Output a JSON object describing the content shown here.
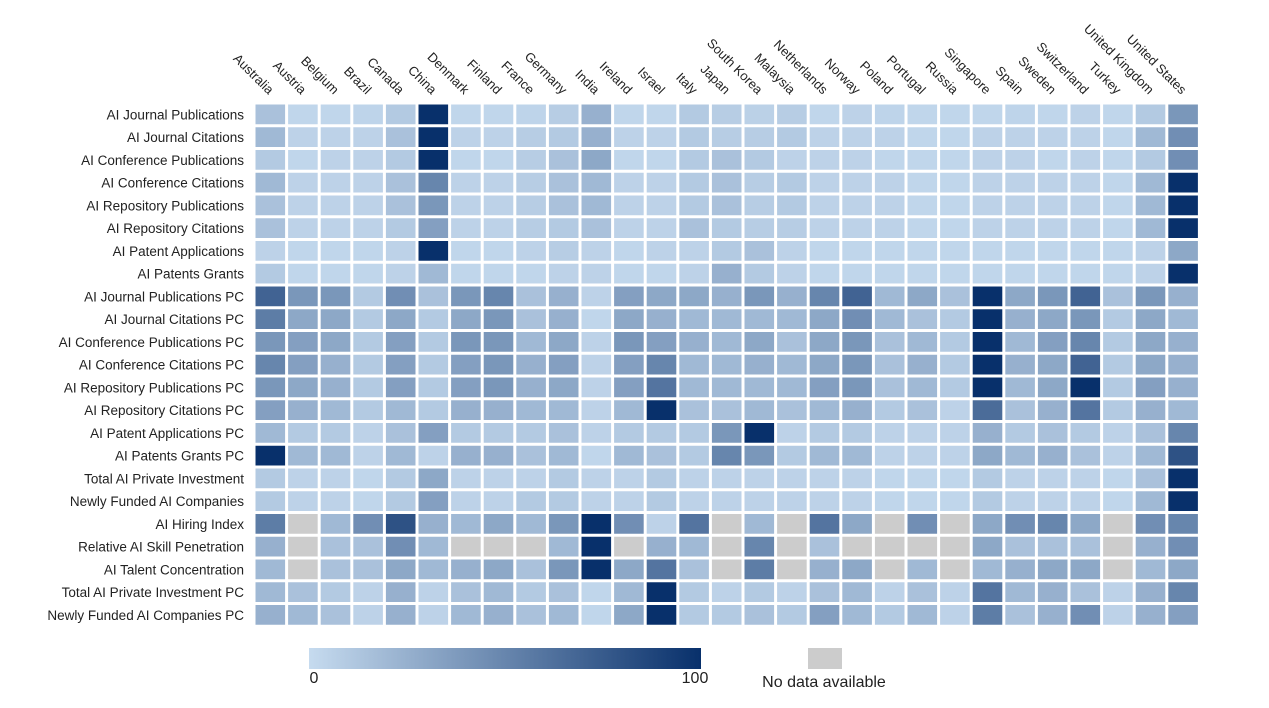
{
  "chart_data": {
    "type": "heatmap",
    "color_scale": {
      "min": 0,
      "max": 100,
      "low_color": "#c6dbef",
      "high_color": "#08306b",
      "missing_color": "#cccccc"
    },
    "legend": {
      "min_label": "0",
      "max_label": "100",
      "missing_label": "No data available"
    },
    "columns": [
      "Australia",
      "Austria",
      "Belgium",
      "Brazil",
      "Canada",
      "China",
      "Denmark",
      "Finland",
      "France",
      "Germany",
      "India",
      "Ireland",
      "Israel",
      "Italy",
      "Japan",
      "South Korea",
      "Malaysia",
      "Netherlands",
      "Norway",
      "Poland",
      "Portugal",
      "Russia",
      "Singapore",
      "Spain",
      "Sweden",
      "Switzerland",
      "Turkey",
      "United Kingdom",
      "United States"
    ],
    "rows": [
      "AI Journal Publications",
      "AI Journal Citations",
      "AI Conference Publications",
      "AI Conference Citations",
      "AI Repository Publications",
      "AI Repository Citations",
      "AI Patent Applications",
      "AI Patents Grants",
      "AI Journal Publications PC",
      "AI Journal Citations PC",
      "AI Conference Publications PC",
      "AI Conference Citations PC",
      "AI Repository Publications PC",
      "AI Repository Citations PC",
      "AI Patent Applications PC",
      "AI Patents Grants PC",
      "Total AI Private Investment",
      "Newly Funded AI Companies",
      "AI Hiring Index",
      "Relative AI Skill Penetration",
      "AI Talent Concentration",
      "Total AI Private Investment PC",
      "Newly Funded AI Companies PC"
    ],
    "values": [
      [
        15,
        3,
        3,
        4,
        10,
        100,
        3,
        3,
        4,
        8,
        25,
        3,
        3,
        10,
        8,
        6,
        8,
        3,
        5,
        4,
        3,
        3,
        3,
        4,
        3,
        5,
        3,
        10,
        40
      ],
      [
        20,
        5,
        5,
        5,
        15,
        100,
        5,
        5,
        8,
        10,
        25,
        5,
        5,
        10,
        8,
        8,
        10,
        5,
        5,
        5,
        3,
        3,
        5,
        5,
        5,
        5,
        3,
        20,
        45
      ],
      [
        10,
        3,
        5,
        5,
        10,
        100,
        3,
        3,
        8,
        15,
        30,
        3,
        3,
        10,
        15,
        10,
        5,
        5,
        5,
        3,
        3,
        3,
        5,
        5,
        3,
        5,
        3,
        10,
        45
      ],
      [
        20,
        5,
        5,
        5,
        15,
        50,
        5,
        5,
        8,
        15,
        20,
        5,
        5,
        10,
        15,
        8,
        10,
        5,
        5,
        5,
        3,
        3,
        5,
        5,
        5,
        5,
        3,
        20,
        100
      ],
      [
        15,
        5,
        5,
        5,
        15,
        40,
        5,
        5,
        8,
        15,
        20,
        5,
        5,
        10,
        15,
        8,
        10,
        5,
        5,
        5,
        3,
        3,
        5,
        5,
        5,
        5,
        3,
        20,
        100
      ],
      [
        15,
        5,
        5,
        5,
        10,
        35,
        5,
        5,
        8,
        10,
        15,
        5,
        5,
        15,
        10,
        8,
        8,
        5,
        5,
        5,
        3,
        3,
        5,
        5,
        5,
        5,
        3,
        20,
        100
      ],
      [
        5,
        3,
        3,
        3,
        5,
        100,
        3,
        3,
        5,
        8,
        5,
        3,
        5,
        5,
        10,
        15,
        5,
        3,
        3,
        3,
        3,
        3,
        3,
        3,
        3,
        3,
        3,
        5,
        30
      ],
      [
        10,
        3,
        3,
        3,
        5,
        20,
        3,
        3,
        3,
        5,
        5,
        3,
        3,
        5,
        25,
        10,
        5,
        3,
        3,
        3,
        3,
        3,
        3,
        3,
        3,
        3,
        3,
        5,
        100
      ],
      [
        70,
        40,
        40,
        10,
        45,
        15,
        40,
        50,
        15,
        25,
        5,
        35,
        30,
        30,
        25,
        40,
        25,
        50,
        70,
        20,
        30,
        15,
        100,
        30,
        40,
        70,
        15,
        40,
        25
      ],
      [
        55,
        30,
        30,
        10,
        30,
        10,
        30,
        40,
        15,
        25,
        3,
        30,
        25,
        20,
        20,
        20,
        20,
        30,
        45,
        20,
        15,
        10,
        100,
        25,
        30,
        40,
        10,
        30,
        20
      ],
      [
        40,
        35,
        30,
        10,
        35,
        10,
        40,
        40,
        20,
        30,
        5,
        40,
        35,
        25,
        20,
        30,
        15,
        30,
        40,
        15,
        20,
        10,
        100,
        20,
        35,
        50,
        10,
        30,
        25
      ],
      [
        50,
        35,
        25,
        10,
        35,
        10,
        35,
        40,
        25,
        35,
        5,
        35,
        50,
        20,
        20,
        25,
        20,
        30,
        40,
        15,
        25,
        10,
        100,
        25,
        30,
        70,
        10,
        30,
        25
      ],
      [
        40,
        30,
        25,
        10,
        35,
        10,
        35,
        40,
        25,
        30,
        5,
        35,
        60,
        20,
        20,
        20,
        20,
        35,
        40,
        15,
        20,
        10,
        100,
        20,
        30,
        100,
        10,
        35,
        25
      ],
      [
        35,
        25,
        20,
        10,
        20,
        10,
        25,
        25,
        20,
        20,
        5,
        20,
        100,
        15,
        15,
        20,
        15,
        20,
        25,
        10,
        15,
        5,
        65,
        15,
        25,
        60,
        10,
        25,
        20
      ],
      [
        20,
        10,
        10,
        5,
        15,
        35,
        10,
        10,
        10,
        15,
        5,
        10,
        10,
        10,
        40,
        100,
        5,
        10,
        10,
        5,
        5,
        5,
        25,
        10,
        15,
        10,
        5,
        15,
        50
      ],
      [
        100,
        20,
        20,
        5,
        20,
        5,
        25,
        25,
        15,
        20,
        3,
        20,
        15,
        10,
        50,
        40,
        10,
        20,
        20,
        5,
        5,
        5,
        30,
        20,
        25,
        15,
        5,
        20,
        80
      ],
      [
        10,
        5,
        5,
        3,
        10,
        30,
        5,
        5,
        5,
        10,
        5,
        5,
        10,
        5,
        5,
        5,
        5,
        5,
        5,
        3,
        3,
        3,
        10,
        5,
        5,
        5,
        3,
        15,
        100
      ],
      [
        10,
        5,
        5,
        3,
        10,
        35,
        5,
        5,
        10,
        10,
        5,
        5,
        10,
        5,
        5,
        5,
        5,
        5,
        5,
        3,
        3,
        3,
        10,
        5,
        5,
        5,
        3,
        20,
        100
      ],
      [
        55,
        null,
        20,
        45,
        80,
        25,
        20,
        30,
        20,
        40,
        100,
        45,
        5,
        60,
        null,
        20,
        null,
        60,
        30,
        null,
        45,
        null,
        30,
        45,
        50,
        30,
        null,
        45,
        50
      ],
      [
        25,
        null,
        15,
        15,
        45,
        20,
        null,
        null,
        null,
        20,
        100,
        null,
        25,
        20,
        null,
        50,
        null,
        15,
        null,
        null,
        null,
        null,
        30,
        15,
        15,
        15,
        null,
        25,
        45
      ],
      [
        20,
        null,
        15,
        15,
        30,
        20,
        25,
        30,
        15,
        40,
        100,
        30,
        60,
        15,
        null,
        55,
        null,
        25,
        30,
        null,
        20,
        null,
        20,
        25,
        30,
        30,
        null,
        20,
        30
      ],
      [
        20,
        15,
        10,
        5,
        25,
        5,
        15,
        20,
        10,
        15,
        3,
        20,
        100,
        10,
        5,
        10,
        5,
        15,
        20,
        5,
        15,
        5,
        60,
        20,
        25,
        15,
        5,
        25,
        50
      ],
      [
        25,
        20,
        15,
        5,
        25,
        5,
        20,
        25,
        15,
        20,
        3,
        30,
        100,
        10,
        10,
        15,
        10,
        35,
        20,
        10,
        20,
        5,
        55,
        15,
        25,
        45,
        5,
        25,
        35
      ]
    ]
  }
}
